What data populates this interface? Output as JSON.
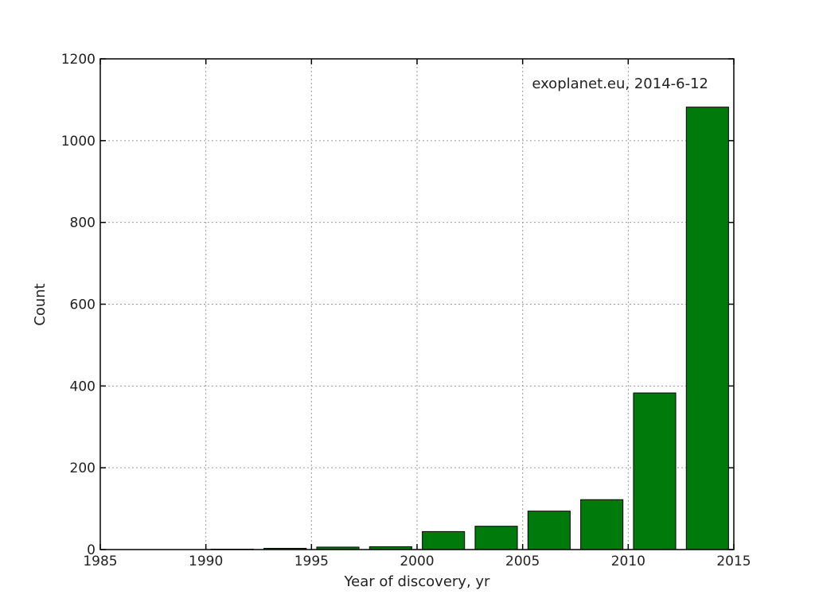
{
  "chart_data": {
    "type": "bar",
    "annotation": "exoplanet.eu, 2014-6-12",
    "xlabel": "Year of discovery, yr",
    "ylabel": "Count",
    "xlim": [
      1985,
      2015
    ],
    "ylim": [
      0,
      1200
    ],
    "xticks": [
      "1985",
      "1990",
      "1995",
      "2000",
      "2005",
      "2010",
      "2015"
    ],
    "yticks": [
      "0",
      "200",
      "400",
      "600",
      "800",
      "1000",
      "1200"
    ],
    "bin_width": 2.5,
    "bins": [
      {
        "x_start": 1990.0,
        "value": 1
      },
      {
        "x_start": 1992.5,
        "value": 3
      },
      {
        "x_start": 1995.0,
        "value": 6
      },
      {
        "x_start": 1997.5,
        "value": 7
      },
      {
        "x_start": 2000.0,
        "value": 44
      },
      {
        "x_start": 2002.5,
        "value": 57
      },
      {
        "x_start": 2005.0,
        "value": 94
      },
      {
        "x_start": 2007.5,
        "value": 122
      },
      {
        "x_start": 2010.0,
        "value": 383
      },
      {
        "x_start": 2012.5,
        "value": 1082
      }
    ],
    "bar_color": "#007a0a",
    "grid": true
  }
}
